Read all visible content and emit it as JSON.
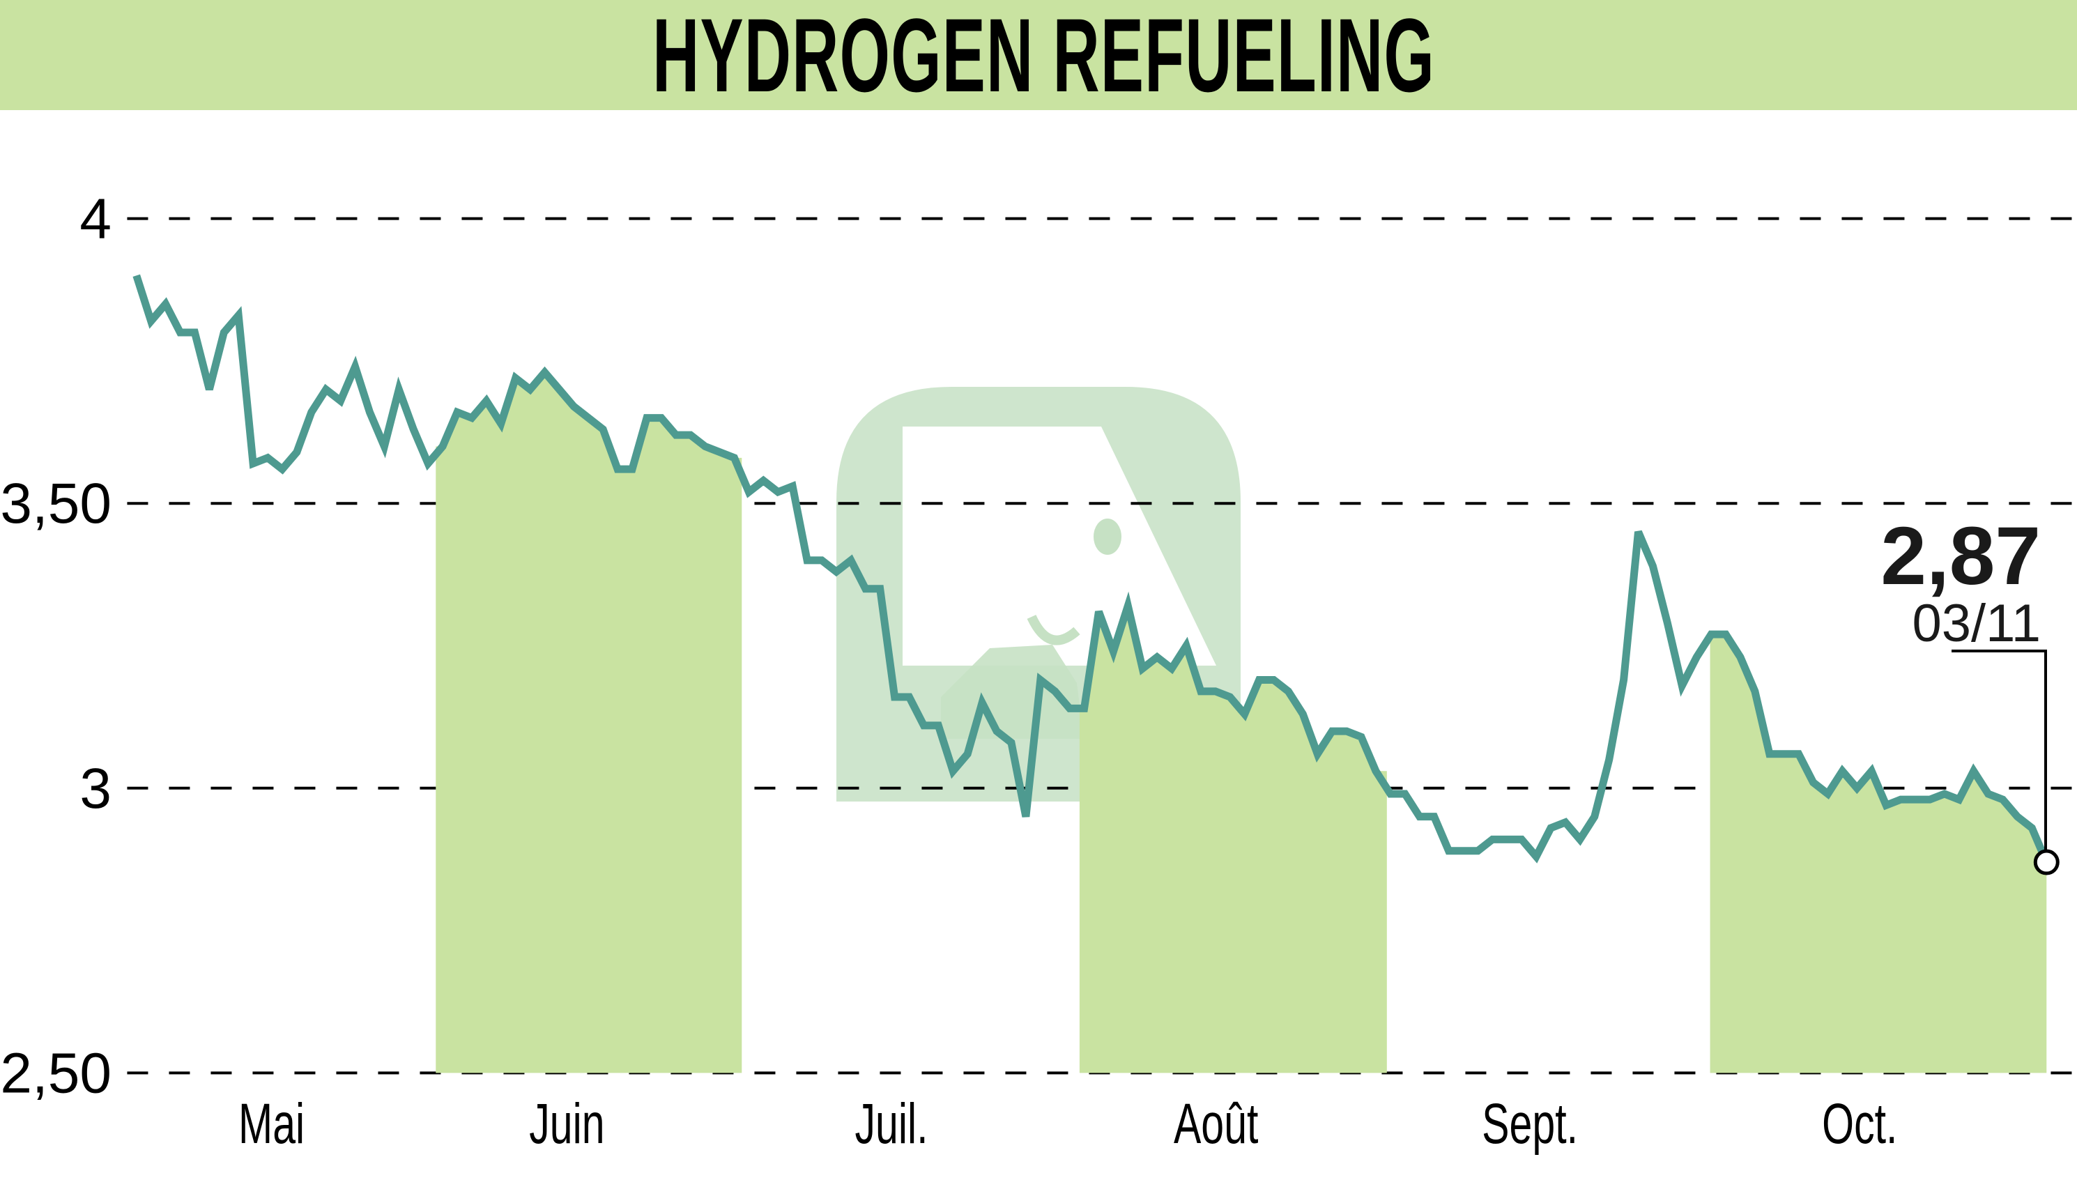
{
  "header": {
    "title": "HYDROGEN REFUELING"
  },
  "colors": {
    "header_bg": "#c9e3a1",
    "band": "#c9e3a1",
    "line": "#4e9a90",
    "watermark": "#c6e1c4"
  },
  "last": {
    "value": "2,87",
    "date": "03/11"
  },
  "chart_data": {
    "type": "line",
    "title": "HYDROGEN REFUELING",
    "xlabel": "",
    "ylabel": "",
    "ylim": [
      2.5,
      4.0
    ],
    "yticks": [
      4,
      3.5,
      3,
      2.5
    ],
    "ytick_labels": [
      "4",
      "3,50",
      "3",
      "2,50"
    ],
    "xtick_labels": [
      "Mai",
      "Juin",
      "Juil.",
      "Août",
      "Sept.",
      "Oct."
    ],
    "grid": "horizontal dashed",
    "legend": null,
    "highlighted_months": [
      "Juin",
      "Août",
      "Oct."
    ],
    "annotation": {
      "value": 2.87,
      "label": "2,87",
      "date": "03/11"
    },
    "series": [
      {
        "name": "HYDROGEN REFUELING",
        "values": [
          3.9,
          3.82,
          3.85,
          3.8,
          3.8,
          3.7,
          3.8,
          3.83,
          3.57,
          3.58,
          3.56,
          3.59,
          3.66,
          3.7,
          3.68,
          3.74,
          3.66,
          3.6,
          3.7,
          3.63,
          3.57,
          3.6,
          3.66,
          3.65,
          3.68,
          3.64,
          3.72,
          3.7,
          3.73,
          3.7,
          3.67,
          3.65,
          3.63,
          3.56,
          3.56,
          3.65,
          3.65,
          3.62,
          3.62,
          3.6,
          3.59,
          3.58,
          3.52,
          3.54,
          3.52,
          3.53,
          3.4,
          3.4,
          3.38,
          3.4,
          3.35,
          3.35,
          3.16,
          3.16,
          3.11,
          3.11,
          3.03,
          3.06,
          3.15,
          3.1,
          3.08,
          2.95,
          3.19,
          3.17,
          3.14,
          3.14,
          3.31,
          3.24,
          3.32,
          3.21,
          3.23,
          3.21,
          3.25,
          3.17,
          3.17,
          3.16,
          3.13,
          3.19,
          3.19,
          3.17,
          3.13,
          3.06,
          3.1,
          3.1,
          3.09,
          3.03,
          2.99,
          2.99,
          2.95,
          2.95,
          2.89,
          2.89,
          2.89,
          2.91,
          2.91,
          2.91,
          2.88,
          2.93,
          2.94,
          2.91,
          2.95,
          3.05,
          3.19,
          3.45,
          3.39,
          3.29,
          3.18,
          3.23,
          3.27,
          3.27,
          3.23,
          3.17,
          3.06,
          3.06,
          3.06,
          3.01,
          2.99,
          3.03,
          3.0,
          3.03,
          2.97,
          2.98,
          2.98,
          2.98,
          2.99,
          2.98,
          3.03,
          2.99,
          2.98,
          2.95,
          2.93,
          2.87
        ]
      }
    ]
  }
}
